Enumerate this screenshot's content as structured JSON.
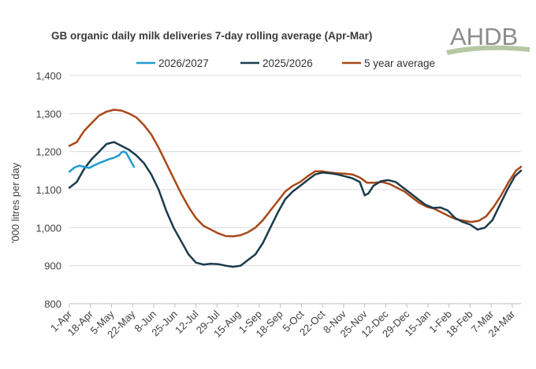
{
  "logo": {
    "text": "AHDB",
    "color": "#8c8c8c"
  },
  "chart_data": {
    "type": "line",
    "title": "GB organic daily milk deliveries 7-day rolling average (Apr-Mar)",
    "xlabel": "",
    "ylabel": "'000 litres per day",
    "ylim": [
      800,
      1400
    ],
    "yticks": [
      800,
      900,
      1000,
      1100,
      1200,
      1300,
      1400
    ],
    "ytick_labels": [
      "800",
      "900",
      "1,000",
      "1,100",
      "1,200",
      "1,300",
      "1,400"
    ],
    "grid": "horizontal",
    "legend_position": "top",
    "x_day_range": [
      0,
      364
    ],
    "x_tick_labels": [
      "1-Apr",
      "18-Apr",
      "5-May",
      "22-May",
      "8-Jun",
      "25-Jun",
      "12-Jul",
      "29-Jul",
      "15-Aug",
      "1-Sep",
      "18-Sep",
      "5-Oct",
      "22-Oct",
      "8-Nov",
      "25-Nov",
      "12-Dec",
      "29-Dec",
      "15-Jan",
      "1-Feb",
      "18-Feb",
      "7-Mar",
      "24-Mar"
    ],
    "series": [
      {
        "name": "2026/2027",
        "color": "#1f9bd1",
        "x": [
          "1-Apr",
          "5-Apr",
          "9-Apr",
          "13-Apr",
          "17-Apr",
          "21-Apr",
          "25-Apr",
          "29-Apr",
          "3-May",
          "7-May",
          "11-May",
          "13-May",
          "15-May",
          "17-May",
          "19-May",
          "21-May",
          "23-May"
        ],
        "values": [
          1147,
          1158,
          1163,
          1160,
          1157,
          1164,
          1170,
          1175,
          1180,
          1184,
          1190,
          1198,
          1200,
          1196,
          1184,
          1172,
          1160
        ]
      },
      {
        "name": "2025/2026",
        "color": "#1b3b4b",
        "x": [
          "1-Apr",
          "7-Apr",
          "13-Apr",
          "19-Apr",
          "25-Apr",
          "1-May",
          "7-May",
          "13-May",
          "19-May",
          "25-May",
          "31-May",
          "6-Jun",
          "12-Jun",
          "18-Jun",
          "24-Jun",
          "30-Jun",
          "6-Jul",
          "12-Jul",
          "18-Jul",
          "24-Jul",
          "30-Jul",
          "5-Aug",
          "11-Aug",
          "17-Aug",
          "23-Aug",
          "29-Aug",
          "4-Sep",
          "10-Sep",
          "16-Sep",
          "22-Sep",
          "28-Sep",
          "4-Oct",
          "10-Oct",
          "16-Oct",
          "22-Oct",
          "28-Oct",
          "3-Nov",
          "9-Nov",
          "15-Nov",
          "21-Nov",
          "25-Nov",
          "28-Nov",
          "2-Dec",
          "8-Dec",
          "14-Dec",
          "20-Dec",
          "26-Dec",
          "1-Jan",
          "7-Jan",
          "13-Jan",
          "19-Jan",
          "25-Jan",
          "31-Jan",
          "6-Feb",
          "12-Feb",
          "18-Feb",
          "24-Feb",
          "2-Mar",
          "8-Mar",
          "14-Mar",
          "20-Mar",
          "26-Mar",
          "31-Mar"
        ],
        "values": [
          1105,
          1120,
          1155,
          1180,
          1200,
          1220,
          1225,
          1215,
          1205,
          1190,
          1170,
          1140,
          1100,
          1045,
          1000,
          965,
          930,
          908,
          903,
          905,
          904,
          900,
          897,
          900,
          915,
          930,
          960,
          1000,
          1040,
          1075,
          1095,
          1110,
          1125,
          1140,
          1145,
          1143,
          1140,
          1135,
          1130,
          1120,
          1085,
          1090,
          1110,
          1122,
          1125,
          1120,
          1105,
          1090,
          1075,
          1060,
          1052,
          1053,
          1045,
          1025,
          1015,
          1008,
          995,
          1000,
          1020,
          1060,
          1100,
          1135,
          1150
        ]
      },
      {
        "name": "5 year average",
        "color": "#a84818",
        "x": [
          "1-Apr",
          "7-Apr",
          "13-Apr",
          "19-Apr",
          "25-Apr",
          "1-May",
          "7-May",
          "13-May",
          "19-May",
          "25-May",
          "31-May",
          "6-Jun",
          "12-Jun",
          "18-Jun",
          "24-Jun",
          "30-Jun",
          "6-Jul",
          "12-Jul",
          "18-Jul",
          "24-Jul",
          "30-Jul",
          "5-Aug",
          "11-Aug",
          "17-Aug",
          "23-Aug",
          "29-Aug",
          "4-Sep",
          "10-Sep",
          "16-Sep",
          "22-Sep",
          "28-Sep",
          "4-Oct",
          "10-Oct",
          "16-Oct",
          "22-Oct",
          "28-Oct",
          "3-Nov",
          "9-Nov",
          "15-Nov",
          "21-Nov",
          "27-Nov",
          "3-Dec",
          "9-Dec",
          "15-Dec",
          "21-Dec",
          "27-Dec",
          "2-Jan",
          "8-Jan",
          "14-Jan",
          "20-Jan",
          "26-Jan",
          "1-Feb",
          "7-Feb",
          "13-Feb",
          "19-Feb",
          "25-Feb",
          "3-Mar",
          "9-Mar",
          "15-Mar",
          "21-Mar",
          "27-Mar",
          "31-Mar"
        ],
        "values": [
          1215,
          1225,
          1255,
          1275,
          1295,
          1305,
          1310,
          1308,
          1300,
          1290,
          1270,
          1245,
          1210,
          1170,
          1130,
          1090,
          1055,
          1025,
          1005,
          995,
          985,
          978,
          977,
          980,
          988,
          1000,
          1020,
          1045,
          1070,
          1095,
          1110,
          1120,
          1135,
          1148,
          1148,
          1145,
          1143,
          1142,
          1140,
          1132,
          1118,
          1118,
          1120,
          1115,
          1105,
          1095,
          1080,
          1065,
          1055,
          1050,
          1040,
          1030,
          1022,
          1018,
          1015,
          1018,
          1030,
          1055,
          1085,
          1120,
          1150,
          1160
        ]
      }
    ]
  }
}
